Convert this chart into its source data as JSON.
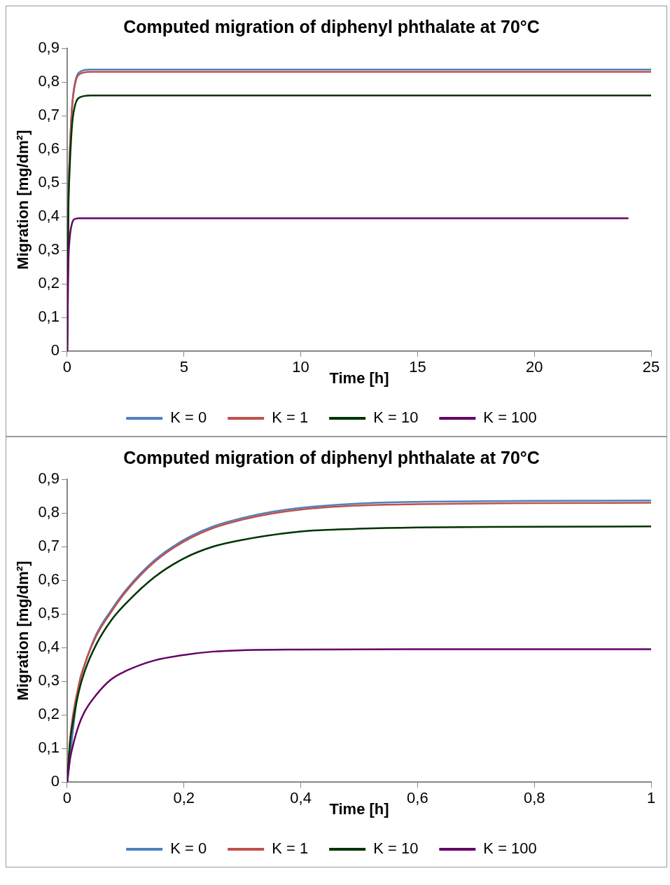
{
  "chart_data": [
    {
      "type": "line",
      "title": "Computed migration of diphenyl phthalate at 70°C",
      "xlabel": "Time [h]",
      "ylabel": "Migration [mg/dm²]",
      "xlim": [
        0,
        25
      ],
      "xticks": [
        0,
        5,
        10,
        15,
        20,
        25
      ],
      "ylim": [
        0,
        0.9
      ],
      "yticks": [
        0,
        {
          "value": 0.1,
          "label": "0,1"
        },
        {
          "value": 0.2,
          "label": "0,2"
        },
        {
          "value": 0.3,
          "label": "0,3"
        },
        {
          "value": 0.4,
          "label": "0,4"
        },
        {
          "value": 0.5,
          "label": "0,5"
        },
        {
          "value": 0.6,
          "label": "0,6"
        },
        {
          "value": 0.7,
          "label": "0,7"
        },
        {
          "value": 0.8,
          "label": "0,8"
        },
        {
          "value": 0.9,
          "label": "0,9"
        }
      ],
      "grid": false,
      "legend": "bottom",
      "marker": "none",
      "line_style": "solid",
      "series": [
        {
          "name": "K = 0",
          "color": "#4f81bd",
          "x": [
            0,
            0.05,
            0.1,
            0.2,
            0.3,
            0.5,
            1,
            25
          ],
          "values": [
            0,
            0.44,
            0.57,
            0.72,
            0.785,
            0.828,
            0.837,
            0.837
          ]
        },
        {
          "name": "K = 1",
          "color": "#c0504d",
          "x": [
            0,
            0.05,
            0.1,
            0.2,
            0.3,
            0.5,
            1,
            25
          ],
          "values": [
            0,
            0.43,
            0.565,
            0.715,
            0.78,
            0.822,
            0.83,
            0.83
          ]
        },
        {
          "name": "K = 10",
          "color": "#003300",
          "x": [
            0,
            0.05,
            0.1,
            0.2,
            0.3,
            0.5,
            1,
            25
          ],
          "values": [
            0,
            0.41,
            0.53,
            0.665,
            0.72,
            0.753,
            0.76,
            0.76
          ]
        },
        {
          "name": "K = 100",
          "color": "#660066",
          "x": [
            0,
            0.05,
            0.1,
            0.2,
            0.3,
            0.5,
            1,
            24
          ],
          "values": [
            0,
            0.26,
            0.33,
            0.378,
            0.392,
            0.395,
            0.395,
            0.395
          ]
        }
      ]
    },
    {
      "type": "line",
      "title": "Computed migration of diphenyl phthalate at 70°C",
      "xlabel": "Time [h]",
      "ylabel": "Migration [mg/dm²]",
      "xlim": [
        0,
        1
      ],
      "xticks": [
        0,
        {
          "value": 0.2,
          "label": "0,2"
        },
        {
          "value": 0.4,
          "label": "0,4"
        },
        {
          "value": 0.6,
          "label": "0,6"
        },
        {
          "value": 0.8,
          "label": "0,8"
        },
        1
      ],
      "ylim": [
        0,
        0.9
      ],
      "yticks": [
        0,
        {
          "value": 0.1,
          "label": "0,1"
        },
        {
          "value": 0.2,
          "label": "0,2"
        },
        {
          "value": 0.3,
          "label": "0,3"
        },
        {
          "value": 0.4,
          "label": "0,4"
        },
        {
          "value": 0.5,
          "label": "0,5"
        },
        {
          "value": 0.6,
          "label": "0,6"
        },
        {
          "value": 0.7,
          "label": "0,7"
        },
        {
          "value": 0.8,
          "label": "0,8"
        },
        {
          "value": 0.9,
          "label": "0,9"
        }
      ],
      "grid": false,
      "legend": "bottom",
      "marker": "none",
      "line_style": "solid",
      "series": [
        {
          "name": "K = 0",
          "color": "#4f81bd",
          "x": [
            0,
            0.02,
            0.03,
            0.05,
            0.075,
            0.1,
            0.15,
            0.2,
            0.25,
            0.3,
            0.35,
            0.4,
            0.5,
            0.6,
            0.8,
            1
          ],
          "values": [
            0,
            0.29,
            0.35,
            0.44,
            0.51,
            0.57,
            0.66,
            0.72,
            0.76,
            0.785,
            0.803,
            0.815,
            0.828,
            0.833,
            0.836,
            0.837
          ]
        },
        {
          "name": "K = 1",
          "color": "#c0504d",
          "x": [
            0,
            0.005,
            0.01,
            0.02,
            0.03,
            0.05,
            0.075,
            0.1,
            0.15,
            0.2,
            0.25,
            0.3,
            0.35,
            0.4,
            0.5,
            0.6,
            0.8,
            1
          ],
          "values": [
            0,
            0.13,
            0.2,
            0.29,
            0.35,
            0.435,
            0.505,
            0.565,
            0.655,
            0.715,
            0.755,
            0.78,
            0.798,
            0.81,
            0.822,
            0.826,
            0.829,
            0.83
          ]
        },
        {
          "name": "K = 10",
          "color": "#003300",
          "x": [
            0,
            0.005,
            0.01,
            0.02,
            0.03,
            0.05,
            0.075,
            0.1,
            0.15,
            0.2,
            0.25,
            0.3,
            0.4,
            0.5,
            0.6,
            0.8,
            1
          ],
          "values": [
            0,
            0.12,
            0.18,
            0.27,
            0.33,
            0.41,
            0.48,
            0.53,
            0.61,
            0.665,
            0.7,
            0.72,
            0.745,
            0.753,
            0.757,
            0.759,
            0.76
          ]
        },
        {
          "name": "K = 100",
          "color": "#660066",
          "x": [
            0,
            0.005,
            0.01,
            0.02,
            0.03,
            0.05,
            0.075,
            0.1,
            0.15,
            0.2,
            0.25,
            0.3,
            0.4,
            0.6,
            1
          ],
          "values": [
            0,
            0.07,
            0.11,
            0.17,
            0.21,
            0.26,
            0.305,
            0.33,
            0.362,
            0.378,
            0.388,
            0.392,
            0.394,
            0.395,
            0.395
          ]
        }
      ]
    }
  ]
}
